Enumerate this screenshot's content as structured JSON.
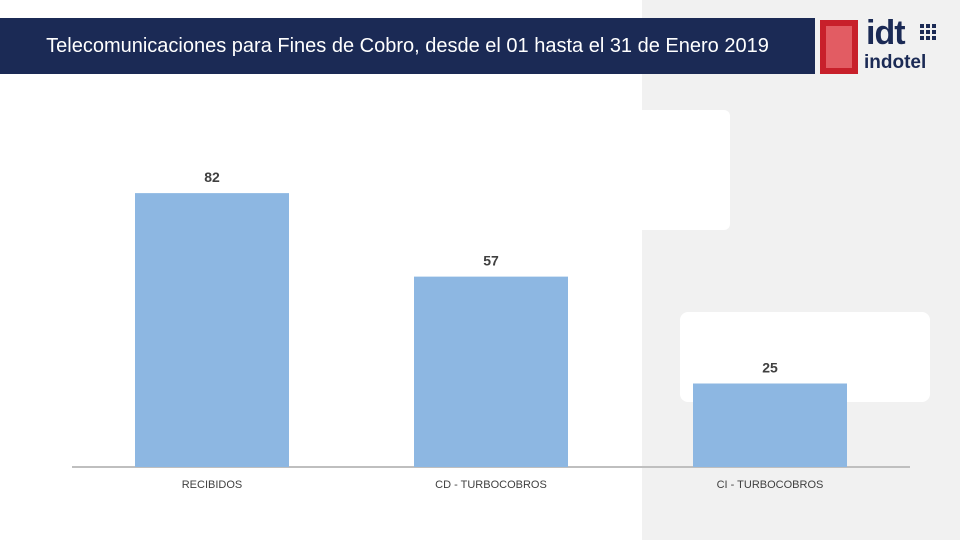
{
  "header": {
    "title": "Telecomunicaciones para Fines de Cobro, desde el 01 hasta el 31 de Enero 2019"
  },
  "logo": {
    "mark": "idt",
    "wordmark": "indotel"
  },
  "colors": {
    "title_bar": "#1b2a55",
    "bar": "#8db7e2",
    "brand_red": "#c8202b"
  },
  "chart_data": {
    "type": "bar",
    "title": "",
    "xlabel": "",
    "ylabel": "",
    "categories": [
      "RECIBIDOS",
      "CD - TURBOCOBROS",
      "CI - TURBOCOBROS"
    ],
    "values": [
      82,
      57,
      25
    ],
    "ylim": [
      0,
      100
    ],
    "grid": false,
    "data_labels": true
  }
}
